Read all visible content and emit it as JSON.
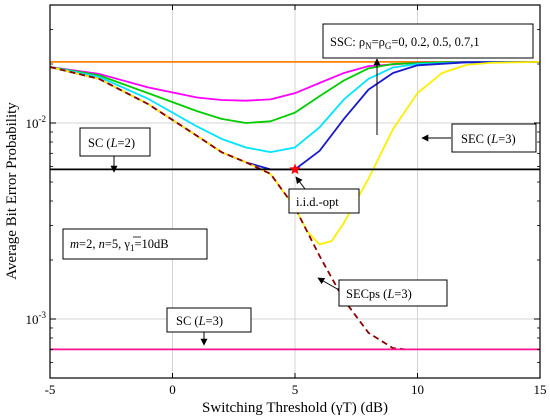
{
  "chart_data": {
    "type": "line",
    "xlabel": "Switching Threshold (γT) (dB)",
    "ylabel": "Average Bit Error Probability",
    "xlim": [
      -5,
      15
    ],
    "ylim": [
      0.0005,
      0.04
    ],
    "yscale": "log",
    "grid": true,
    "x_ticks": [
      "-5",
      "0",
      "5",
      "10",
      "15"
    ],
    "y_ticks": [
      {
        "value": 0.01,
        "base": "10",
        "exp": "-2"
      },
      {
        "value": 0.001,
        "base": "10",
        "exp": "-3"
      }
    ],
    "series": [
      {
        "color": "#ff8000",
        "style": "solid",
        "points": [
          [
            -5,
            0.0205
          ],
          [
            15,
            0.0205
          ]
        ]
      },
      {
        "color": "#ff00ff",
        "style": "solid",
        "points": [
          [
            -5,
            0.0193
          ],
          [
            -3,
            0.0178
          ],
          [
            -1,
            0.0152
          ],
          [
            1,
            0.0135
          ],
          [
            2,
            0.0131
          ],
          [
            3,
            0.013
          ],
          [
            4,
            0.0132
          ],
          [
            5,
            0.0142
          ],
          [
            6,
            0.016
          ],
          [
            7,
            0.018
          ],
          [
            8,
            0.0195
          ],
          [
            10,
            0.0203
          ],
          [
            12,
            0.0205
          ],
          [
            15,
            0.0205
          ]
        ]
      },
      {
        "color": "#00cc00",
        "style": "solid",
        "points": [
          [
            -5,
            0.0193
          ],
          [
            -3,
            0.0175
          ],
          [
            -1,
            0.0142
          ],
          [
            1,
            0.0115
          ],
          [
            2,
            0.0105
          ],
          [
            3,
            0.01
          ],
          [
            4,
            0.0102
          ],
          [
            5,
            0.0113
          ],
          [
            6,
            0.0137
          ],
          [
            7,
            0.0165
          ],
          [
            8,
            0.019
          ],
          [
            9,
            0.02
          ],
          [
            11,
            0.0204
          ],
          [
            15,
            0.0205
          ]
        ]
      },
      {
        "color": "#00e5ff",
        "style": "solid",
        "points": [
          [
            -5,
            0.0193
          ],
          [
            -3,
            0.0172
          ],
          [
            -1,
            0.0133
          ],
          [
            1,
            0.0096
          ],
          [
            2,
            0.0083
          ],
          [
            3,
            0.0075
          ],
          [
            4,
            0.0071
          ],
          [
            5,
            0.0075
          ],
          [
            6,
            0.0095
          ],
          [
            7,
            0.0132
          ],
          [
            8,
            0.0168
          ],
          [
            9,
            0.0192
          ],
          [
            10,
            0.02
          ],
          [
            12,
            0.0204
          ],
          [
            15,
            0.0205
          ]
        ]
      },
      {
        "color": "#1a1acc",
        "style": "solid",
        "points": [
          [
            -5,
            0.0193
          ],
          [
            -3,
            0.0168
          ],
          [
            -1,
            0.0125
          ],
          [
            1,
            0.0086
          ],
          [
            2,
            0.0071
          ],
          [
            3,
            0.0063
          ],
          [
            4,
            0.0058
          ],
          [
            5,
            0.0058
          ],
          [
            6,
            0.0072
          ],
          [
            7,
            0.0105
          ],
          [
            8,
            0.0148
          ],
          [
            9,
            0.018
          ],
          [
            10,
            0.0197
          ],
          [
            12,
            0.0204
          ],
          [
            15,
            0.0205
          ]
        ]
      },
      {
        "color": "#ffee00",
        "style": "solid",
        "points": [
          [
            -5,
            0.0193
          ],
          [
            -3,
            0.0168
          ],
          [
            -1,
            0.0125
          ],
          [
            1,
            0.0086
          ],
          [
            2,
            0.0071
          ],
          [
            3,
            0.0063
          ],
          [
            4,
            0.0055
          ],
          [
            5,
            0.0037
          ],
          [
            5.5,
            0.0028
          ],
          [
            6,
            0.0024
          ],
          [
            6.5,
            0.0025
          ],
          [
            7,
            0.0031
          ],
          [
            8,
            0.0052
          ],
          [
            9,
            0.0093
          ],
          [
            10,
            0.0142
          ],
          [
            11,
            0.018
          ],
          [
            12,
            0.0198
          ],
          [
            13,
            0.0203
          ],
          [
            15,
            0.0205
          ]
        ]
      },
      {
        "color": "#8b0000",
        "style": "dashed",
        "points": [
          [
            -5,
            0.0193
          ],
          [
            -3,
            0.0168
          ],
          [
            -1,
            0.0125
          ],
          [
            1,
            0.0086
          ],
          [
            2,
            0.0071
          ],
          [
            3,
            0.0063
          ],
          [
            4,
            0.0055
          ],
          [
            5,
            0.0037
          ],
          [
            6,
            0.0021
          ],
          [
            7,
            0.00125
          ],
          [
            8,
            0.00085
          ],
          [
            9,
            0.00071
          ],
          [
            9.5,
            0.0007
          ]
        ]
      },
      {
        "color": "#000000",
        "style": "solid",
        "points": [
          [
            -5,
            0.0058
          ],
          [
            15,
            0.0058
          ]
        ]
      },
      {
        "color": "#ff1493",
        "style": "solid",
        "points": [
          [
            -5,
            0.0007
          ],
          [
            15,
            0.0007
          ]
        ]
      }
    ],
    "markers": [
      {
        "x": 5,
        "y": 0.0058,
        "color": "#ff0000"
      }
    ],
    "annotations": {
      "ssc": {
        "rho_parts": [
          "SSC: ρ",
          "N",
          "=ρ",
          "G",
          "=0, 0.2, 0.5, 0.7,1"
        ]
      },
      "sc2": {
        "parts": [
          "SC (",
          "L",
          "=2)"
        ]
      },
      "sec3": {
        "parts": [
          "SEC (",
          "L",
          "=3)"
        ]
      },
      "iid": {
        "text": "i.i.d.-opt"
      },
      "params": {
        "parts": [
          "m",
          "=2, ",
          "n",
          "=5, ",
          "γ",
          "1",
          "=10dB"
        ]
      },
      "secps": {
        "parts": [
          "SECps (",
          "L",
          "=3)"
        ]
      },
      "sc3": {
        "parts": [
          "SC (",
          "L",
          "=3)"
        ]
      }
    }
  }
}
